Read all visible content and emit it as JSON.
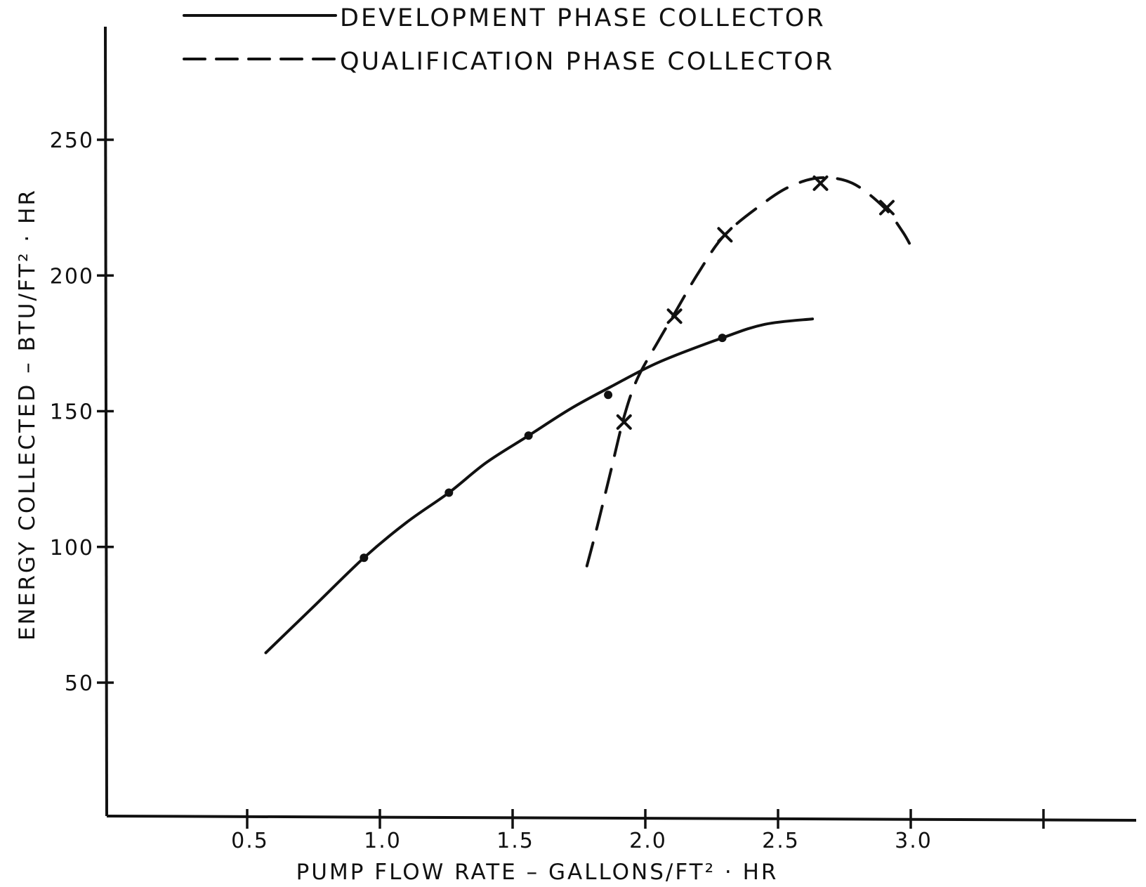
{
  "chart_data": {
    "type": "line",
    "xlabel": "PUMP FLOW RATE – GALLONS/FT² · HR",
    "ylabel": "ENERGY COLLECTED – BTU/FT² · HR",
    "xlim": [
      0,
      3.85
    ],
    "ylim": [
      0,
      292
    ],
    "x_ticks": [
      {
        "value": 0.5,
        "label": "0.5"
      },
      {
        "value": 1.0,
        "label": "1.0"
      },
      {
        "value": 1.5,
        "label": "1.5"
      },
      {
        "value": 2.0,
        "label": "2.0"
      },
      {
        "value": 2.5,
        "label": "2.5"
      },
      {
        "value": 3.0,
        "label": "3.0"
      },
      {
        "value": 3.5,
        "label": ""
      }
    ],
    "y_ticks": [
      {
        "value": 50,
        "label": "50"
      },
      {
        "value": 100,
        "label": "100"
      },
      {
        "value": 150,
        "label": "150"
      },
      {
        "value": 200,
        "label": "200"
      },
      {
        "value": 250,
        "label": "250"
      }
    ],
    "grid": false,
    "legend_position": "top-left",
    "series": [
      {
        "name": "DEVELOPMENT PHASE COLLECTOR",
        "line_style": "solid",
        "marker": "dot",
        "curve": [
          {
            "x": 0.57,
            "y": 61
          },
          {
            "x": 0.75,
            "y": 78
          },
          {
            "x": 0.94,
            "y": 96
          },
          {
            "x": 1.1,
            "y": 109
          },
          {
            "x": 1.26,
            "y": 120
          },
          {
            "x": 1.4,
            "y": 131
          },
          {
            "x": 1.56,
            "y": 141
          },
          {
            "x": 1.72,
            "y": 151
          },
          {
            "x": 1.87,
            "y": 159
          },
          {
            "x": 2.05,
            "y": 168
          },
          {
            "x": 2.29,
            "y": 177
          },
          {
            "x": 2.45,
            "y": 182
          },
          {
            "x": 2.63,
            "y": 184
          }
        ],
        "points": [
          {
            "x": 0.94,
            "y": 96
          },
          {
            "x": 1.26,
            "y": 120
          },
          {
            "x": 1.56,
            "y": 141
          },
          {
            "x": 1.86,
            "y": 156
          },
          {
            "x": 2.29,
            "y": 177
          }
        ]
      },
      {
        "name": "QUALIFICATION PHASE COLLECTOR",
        "line_style": "dashed",
        "marker": "x",
        "curve": [
          {
            "x": 1.78,
            "y": 93
          },
          {
            "x": 1.82,
            "y": 108
          },
          {
            "x": 1.87,
            "y": 128
          },
          {
            "x": 1.92,
            "y": 148
          },
          {
            "x": 1.97,
            "y": 162
          },
          {
            "x": 2.05,
            "y": 176
          },
          {
            "x": 2.11,
            "y": 186
          },
          {
            "x": 2.2,
            "y": 201
          },
          {
            "x": 2.3,
            "y": 215
          },
          {
            "x": 2.45,
            "y": 227
          },
          {
            "x": 2.55,
            "y": 233
          },
          {
            "x": 2.66,
            "y": 236
          },
          {
            "x": 2.78,
            "y": 234
          },
          {
            "x": 2.9,
            "y": 225
          },
          {
            "x": 2.97,
            "y": 216
          },
          {
            "x": 3.01,
            "y": 209
          }
        ],
        "points": [
          {
            "x": 1.92,
            "y": 146
          },
          {
            "x": 2.11,
            "y": 185
          },
          {
            "x": 2.3,
            "y": 215
          },
          {
            "x": 2.66,
            "y": 234
          },
          {
            "x": 2.91,
            "y": 225
          }
        ]
      }
    ]
  }
}
